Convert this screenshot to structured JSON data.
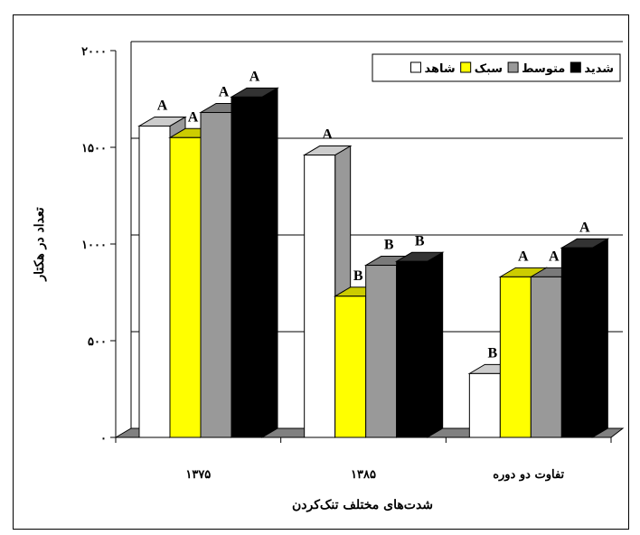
{
  "chart_data": {
    "type": "bar",
    "categories": [
      "۱۳۷۵",
      "۱۳۸۵",
      "تفاوت دو دوره"
    ],
    "series": [
      {
        "name": "شاهد",
        "color": "#ffffff",
        "values": [
          1610,
          1460,
          330
        ],
        "letters": [
          "A",
          "A",
          "B"
        ]
      },
      {
        "name": "سبک",
        "color": "#ffff00",
        "values": [
          1550,
          730,
          830
        ],
        "letters": [
          "A",
          "B",
          "A"
        ]
      },
      {
        "name": "متوسط",
        "color": "#999999",
        "values": [
          1680,
          890,
          830
        ],
        "letters": [
          "A",
          "B",
          "A"
        ]
      },
      {
        "name": "شدید",
        "color": "#000000",
        "values": [
          1760,
          910,
          980
        ],
        "letters": [
          "A",
          "B",
          "A"
        ]
      }
    ],
    "y_ticks": [
      {
        "value": 0,
        "label": "۰"
      },
      {
        "value": 500,
        "label": "۵۰۰"
      },
      {
        "value": 1000,
        "label": "۱۰۰۰"
      },
      {
        "value": 1500,
        "label": "۱۵۰۰"
      },
      {
        "value": 2000,
        "label": "۲۰۰۰"
      }
    ],
    "ylim": [
      0,
      2000
    ],
    "xlabel": "شدت‌های مختلف تنک‌کردن",
    "ylabel": "تعداد در هکتار",
    "legend_position": "top-right",
    "grid": true
  }
}
